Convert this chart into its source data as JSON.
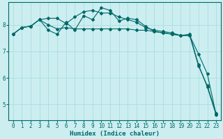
{
  "title": "",
  "xlabel": "Humidex (Indice chaleur)",
  "ylabel": "",
  "bg_color": "#cceef0",
  "line_color": "#006868",
  "grid_color": "#aadde0",
  "xlim": [
    -0.5,
    23.5
  ],
  "ylim": [
    4.4,
    8.85
  ],
  "xticks": [
    0,
    1,
    2,
    3,
    4,
    5,
    6,
    7,
    8,
    9,
    10,
    11,
    12,
    13,
    14,
    15,
    16,
    17,
    18,
    19,
    20,
    21,
    22,
    23
  ],
  "yticks": [
    5,
    6,
    7,
    8
  ],
  "series1_x": [
    0,
    1,
    2,
    3,
    4,
    5,
    6,
    7,
    8,
    9,
    10,
    11,
    12,
    13,
    14,
    15,
    16,
    17,
    18,
    19,
    20,
    21,
    22,
    23
  ],
  "series1_y": [
    7.65,
    7.9,
    7.95,
    8.2,
    8.25,
    8.25,
    8.05,
    8.3,
    8.5,
    8.55,
    8.45,
    8.45,
    8.3,
    8.2,
    8.1,
    7.9,
    7.8,
    7.75,
    7.7,
    7.6,
    7.6,
    6.45,
    5.7,
    4.65
  ],
  "series2_x": [
    0,
    1,
    2,
    3,
    4,
    5,
    6,
    7,
    8,
    9,
    10,
    11,
    12,
    13,
    14,
    15,
    16,
    17,
    18,
    19,
    20,
    21,
    22,
    23
  ],
  "series2_y": [
    7.65,
    7.9,
    7.95,
    8.2,
    7.8,
    7.65,
    8.1,
    7.8,
    8.35,
    8.2,
    8.65,
    8.55,
    8.15,
    8.25,
    8.2,
    7.95,
    7.75,
    7.7,
    7.65,
    7.6,
    7.65,
    6.5,
    5.65,
    4.6
  ],
  "series3_x": [
    0,
    1,
    2,
    3,
    4,
    5,
    6,
    7,
    8,
    9,
    10,
    11,
    12,
    13,
    14,
    15,
    16,
    17,
    18,
    19,
    20,
    21,
    22,
    23
  ],
  "series3_y": [
    7.65,
    7.9,
    7.95,
    8.2,
    8.0,
    7.85,
    7.9,
    7.85,
    7.85,
    7.85,
    7.85,
    7.85,
    7.85,
    7.85,
    7.8,
    7.8,
    7.75,
    7.7,
    7.65,
    7.6,
    7.6,
    6.9,
    6.15,
    4.6
  ],
  "tick_fontsize": 5.5,
  "xlabel_fontsize": 6.5,
  "marker_size": 2.0,
  "line_width": 0.8
}
